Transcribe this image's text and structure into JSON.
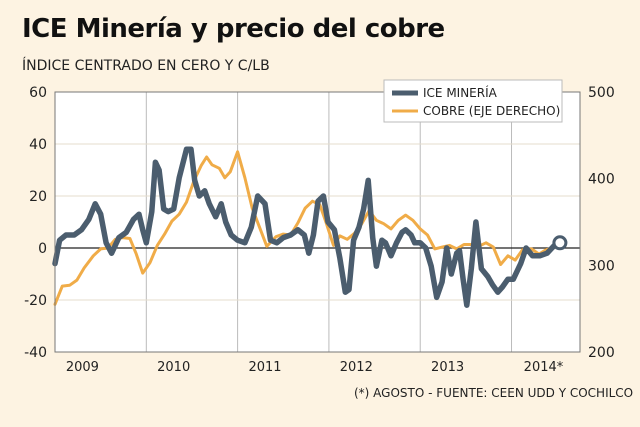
{
  "chart_data": {
    "type": "line",
    "title": "ICE Minería y precio del cobre",
    "subtitle": "ÍNDICE CENTRADO EN CERO Y C/LB",
    "source": "(*) AGOSTO - FUENTE: CEEN UDD Y COCHILCO",
    "x_labels": [
      "2009",
      "2010",
      "2011",
      "2012",
      "2013",
      "2014*"
    ],
    "y_left": {
      "ticks": [
        60,
        40,
        20,
        0,
        -20,
        -40
      ],
      "ylim": [
        -40,
        60
      ]
    },
    "y_right": {
      "ticks": [
        500,
        400,
        300,
        200
      ],
      "ylim": [
        200,
        500
      ]
    },
    "legend": [
      "ICE MINERÍA",
      "COBRE (EJE DERECHO)"
    ],
    "x_range": [
      2009.0,
      2014.75
    ],
    "series": [
      {
        "name": "ICE MINERÍA",
        "axis": "left",
        "color": "#4b5d6e",
        "points": [
          [
            2009.0,
            -6
          ],
          [
            2009.05,
            3
          ],
          [
            2009.12,
            5
          ],
          [
            2009.21,
            5
          ],
          [
            2009.29,
            7
          ],
          [
            2009.37,
            11
          ],
          [
            2009.44,
            17
          ],
          [
            2009.5,
            13
          ],
          [
            2009.56,
            2
          ],
          [
            2009.62,
            -2
          ],
          [
            2009.7,
            4
          ],
          [
            2009.78,
            6
          ],
          [
            2009.86,
            11
          ],
          [
            2009.92,
            13
          ],
          [
            2009.96,
            7
          ],
          [
            2010.0,
            2
          ],
          [
            2010.06,
            14
          ],
          [
            2010.1,
            33
          ],
          [
            2010.14,
            30
          ],
          [
            2010.19,
            15
          ],
          [
            2010.24,
            14
          ],
          [
            2010.3,
            15
          ],
          [
            2010.36,
            27
          ],
          [
            2010.44,
            38
          ],
          [
            2010.49,
            38
          ],
          [
            2010.53,
            26
          ],
          [
            2010.58,
            20
          ],
          [
            2010.64,
            22
          ],
          [
            2010.69,
            17
          ],
          [
            2010.76,
            12
          ],
          [
            2010.82,
            17
          ],
          [
            2010.87,
            10
          ],
          [
            2010.93,
            5
          ],
          [
            2011.0,
            3
          ],
          [
            2011.08,
            2
          ],
          [
            2011.15,
            8
          ],
          [
            2011.22,
            20
          ],
          [
            2011.3,
            17
          ],
          [
            2011.36,
            3
          ],
          [
            2011.43,
            2
          ],
          [
            2011.5,
            4
          ],
          [
            2011.58,
            5
          ],
          [
            2011.66,
            7
          ],
          [
            2011.73,
            5
          ],
          [
            2011.78,
            -2
          ],
          [
            2011.83,
            5
          ],
          [
            2011.88,
            18
          ],
          [
            2011.94,
            20
          ],
          [
            2011.99,
            10
          ],
          [
            2012.06,
            7
          ],
          [
            2012.12,
            -4
          ],
          [
            2012.18,
            -17
          ],
          [
            2012.22,
            -16
          ],
          [
            2012.27,
            3
          ],
          [
            2012.33,
            8
          ],
          [
            2012.38,
            15
          ],
          [
            2012.43,
            26
          ],
          [
            2012.48,
            4
          ],
          [
            2012.52,
            -7
          ],
          [
            2012.58,
            3
          ],
          [
            2012.62,
            2
          ],
          [
            2012.68,
            -3
          ],
          [
            2012.74,
            2
          ],
          [
            2012.8,
            6
          ],
          [
            2012.84,
            7
          ],
          [
            2012.9,
            5
          ],
          [
            2012.94,
            2
          ],
          [
            2013.0,
            2
          ],
          [
            2013.06,
            0
          ],
          [
            2013.12,
            -7
          ],
          [
            2013.18,
            -19
          ],
          [
            2013.24,
            -13
          ],
          [
            2013.29,
            0
          ],
          [
            2013.34,
            -10
          ],
          [
            2013.4,
            -2
          ],
          [
            2013.43,
            -1
          ],
          [
            2013.47,
            -12
          ],
          [
            2013.51,
            -22
          ],
          [
            2013.56,
            -8
          ],
          [
            2013.61,
            10
          ],
          [
            2013.67,
            -8
          ],
          [
            2013.74,
            -11
          ],
          [
            2013.79,
            -14
          ],
          [
            2013.85,
            -17
          ],
          [
            2013.9,
            -15
          ],
          [
            2013.96,
            -12
          ],
          [
            2014.02,
            -12
          ],
          [
            2014.1,
            -6
          ],
          [
            2014.16,
            0
          ],
          [
            2014.23,
            -3
          ],
          [
            2014.31,
            -3
          ],
          [
            2014.39,
            -2
          ],
          [
            2014.47,
            1
          ],
          [
            2014.53,
            2
          ]
        ]
      },
      {
        "name": "COBRE (EJE DERECHO)",
        "axis": "right",
        "color": "#f0ac48",
        "points": [
          [
            2009.0,
            255
          ],
          [
            2009.08,
            276
          ],
          [
            2009.16,
            277
          ],
          [
            2009.24,
            283
          ],
          [
            2009.32,
            297
          ],
          [
            2009.42,
            311
          ],
          [
            2009.5,
            319
          ],
          [
            2009.58,
            320
          ],
          [
            2009.66,
            330
          ],
          [
            2009.74,
            332
          ],
          [
            2009.82,
            331
          ],
          [
            2009.89,
            313
          ],
          [
            2009.96,
            291
          ],
          [
            2010.04,
            303
          ],
          [
            2010.12,
            323
          ],
          [
            2010.2,
            336
          ],
          [
            2010.28,
            351
          ],
          [
            2010.36,
            359
          ],
          [
            2010.44,
            373
          ],
          [
            2010.52,
            397
          ],
          [
            2010.6,
            415
          ],
          [
            2010.66,
            425
          ],
          [
            2010.72,
            416
          ],
          [
            2010.8,
            412
          ],
          [
            2010.86,
            401
          ],
          [
            2010.92,
            408
          ],
          [
            2011.0,
            431
          ],
          [
            2011.08,
            401
          ],
          [
            2011.16,
            366
          ],
          [
            2011.24,
            344
          ],
          [
            2011.32,
            322
          ],
          [
            2011.42,
            333
          ],
          [
            2011.5,
            336
          ],
          [
            2011.58,
            335
          ],
          [
            2011.66,
            349
          ],
          [
            2011.74,
            366
          ],
          [
            2011.82,
            374
          ],
          [
            2011.9,
            370
          ],
          [
            2011.97,
            349
          ],
          [
            2012.05,
            323
          ],
          [
            2012.12,
            334
          ],
          [
            2012.2,
            330
          ],
          [
            2012.28,
            337
          ],
          [
            2012.36,
            348
          ],
          [
            2012.44,
            363
          ],
          [
            2012.52,
            352
          ],
          [
            2012.6,
            348
          ],
          [
            2012.68,
            342
          ],
          [
            2012.76,
            352
          ],
          [
            2012.84,
            358
          ],
          [
            2012.92,
            352
          ],
          [
            2013.0,
            342
          ],
          [
            2013.08,
            335
          ],
          [
            2013.16,
            319
          ],
          [
            2013.24,
            321
          ],
          [
            2013.32,
            323
          ],
          [
            2013.4,
            319
          ],
          [
            2013.48,
            324
          ],
          [
            2013.56,
            324
          ],
          [
            2013.64,
            322
          ],
          [
            2013.72,
            326
          ],
          [
            2013.8,
            321
          ],
          [
            2013.88,
            301
          ],
          [
            2013.96,
            311
          ],
          [
            2014.04,
            306
          ],
          [
            2014.12,
            318
          ],
          [
            2014.22,
            319
          ],
          [
            2014.3,
            313
          ],
          [
            2014.38,
            318
          ],
          [
            2014.46,
            320
          ],
          [
            2014.53,
            325
          ]
        ]
      }
    ]
  }
}
